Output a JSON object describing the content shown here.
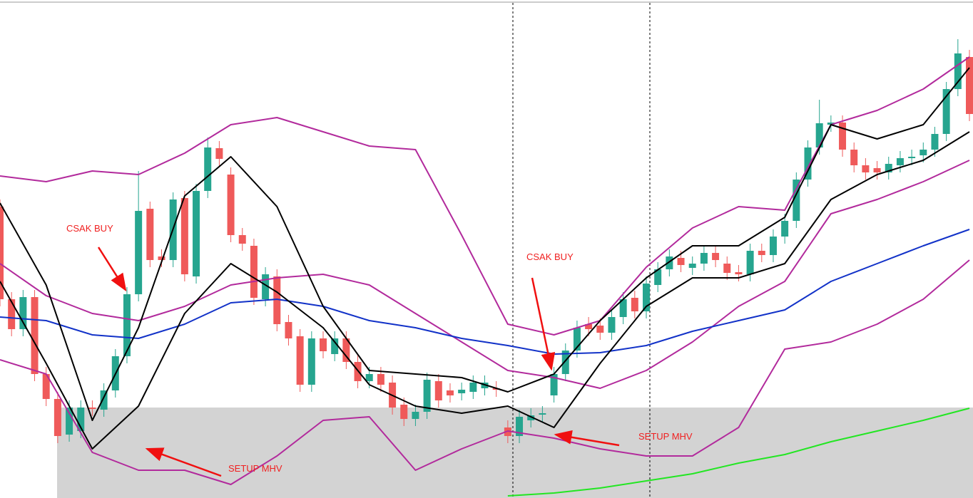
{
  "chart_data": {
    "type": "candlestick",
    "up_color": "#26a58f",
    "down_color": "#ef5a5a",
    "ylim": [
      0,
      69.9
    ],
    "open": [
      40.9,
      27.9,
      23.7,
      28.2,
      17.4,
      13.9,
      8.9,
      9.4,
      12.7,
      12.4,
      15.1,
      19.9,
      28.6,
      40.6,
      33.9,
      33.4,
      42.1,
      31.1,
      43.1,
      49.1,
      45.4,
      36.9,
      35.4,
      27.9,
      31.1,
      24.7,
      22.7,
      15.9,
      22.4,
      20.2,
      22.4,
      19.1,
      16.4,
      17.4,
      16.2,
      13.1,
      11.1,
      12.1,
      16.4,
      15.1,
      14.7,
      14.9,
      15.4,
      15.4,
      9.9,
      8.7,
      10.9,
      11.7,
      14.4,
      17.4,
      20.7,
      24.4,
      24.2,
      23.2,
      25.4,
      28.1,
      26.2,
      29.9,
      32.1,
      33.7,
      32.3,
      32.9,
      34.4,
      32.9,
      31.7,
      31.4,
      34.7,
      34.1,
      36.7,
      38.9,
      44.7,
      49.2,
      52.4,
      52.7,
      48.9,
      46.7,
      46.3,
      45.7,
      46.7,
      47.7,
      48.1,
      48.9,
      51.1,
      57.4,
      61.9
    ],
    "high": [
      41.9,
      28.9,
      29.2,
      29.2,
      18.4,
      14.9,
      13.7,
      13.7,
      13.7,
      16.1,
      20.9,
      29.6,
      45.9,
      41.6,
      34.9,
      42.9,
      43.1,
      44.1,
      50.6,
      50.1,
      46.4,
      37.9,
      36.4,
      32.4,
      32.1,
      25.7,
      23.7,
      23.4,
      23.4,
      23.4,
      23.4,
      20.1,
      18.4,
      18.4,
      17.2,
      14.1,
      13.1,
      17.6,
      17.4,
      16.1,
      16.2,
      17.2,
      17.2,
      16.4,
      10.9,
      12.4,
      12.6,
      12.9,
      18.4,
      21.7,
      24.9,
      25.4,
      25.2,
      26.4,
      28.9,
      29.1,
      31.1,
      33.1,
      34.9,
      34.7,
      33.9,
      35.4,
      35.4,
      33.9,
      32.7,
      35.7,
      35.7,
      37.7,
      39.9,
      45.7,
      50.2,
      55.9,
      53.7,
      53.7,
      49.9,
      47.7,
      47.3,
      47.9,
      48.7,
      48.9,
      49.9,
      52.1,
      58.4,
      64.4,
      62.9
    ],
    "low": [
      26.9,
      22.7,
      22.7,
      16.4,
      12.9,
      7.7,
      7.9,
      8.4,
      11.5,
      11.4,
      14.1,
      18.9,
      27.6,
      32.4,
      32.4,
      32.4,
      30.4,
      30.1,
      42.1,
      46.6,
      35.9,
      34.7,
      27.1,
      26.9,
      23.4,
      21.4,
      14.9,
      14.9,
      19.6,
      19.2,
      18.1,
      15.4,
      15.4,
      14.9,
      11.7,
      10.1,
      10.1,
      11.1,
      12.7,
      13.4,
      13.7,
      13.9,
      14.4,
      14.2,
      7.7,
      7.7,
      9.9,
      10.7,
      13.4,
      16.4,
      19.7,
      22.7,
      22.2,
      22.2,
      24.4,
      25.2,
      25.2,
      28.9,
      31.1,
      31.7,
      31.3,
      31.9,
      32.4,
      30.6,
      30.4,
      30.4,
      33.1,
      33.1,
      35.7,
      37.9,
      43.7,
      48.2,
      51.4,
      47.9,
      45.7,
      44.7,
      44.7,
      44.7,
      45.7,
      46.7,
      47.1,
      47.9,
      50.1,
      56.4,
      52.9
    ],
    "close": [
      27.9,
      23.7,
      28.2,
      17.4,
      13.9,
      8.7,
      12.7,
      12.7,
      12.5,
      15.1,
      19.9,
      28.6,
      40.3,
      33.4,
      33.4,
      41.9,
      31.4,
      43.1,
      49.2,
      47.6,
      36.9,
      35.7,
      28.1,
      31.4,
      24.4,
      22.4,
      15.9,
      22.4,
      20.6,
      22.4,
      19.1,
      16.4,
      17.4,
      15.9,
      12.7,
      11.1,
      12.1,
      16.6,
      13.7,
      14.4,
      15.2,
      16.2,
      16.2,
      15.2,
      8.7,
      11.4,
      11.6,
      11.9,
      17.4,
      20.7,
      23.9,
      23.7,
      23.2,
      25.4,
      27.9,
      26.2,
      30.1,
      32.1,
      33.9,
      32.7,
      32.9,
      34.4,
      33.4,
      31.6,
      31.4,
      34.7,
      34.1,
      36.7,
      38.9,
      44.7,
      49.2,
      52.6,
      52.7,
      48.9,
      46.7,
      45.7,
      45.7,
      46.9,
      47.7,
      47.9,
      48.9,
      51.1,
      57.4,
      62.4,
      53.9
    ],
    "overlays": [
      {
        "color": "#b22a9c",
        "x": [
          0,
          4,
          8,
          12,
          16,
          20,
          24,
          28,
          32,
          36,
          40,
          44,
          48,
          52,
          56,
          60,
          64,
          68,
          72,
          76,
          80,
          84
        ],
        "values": [
          45.2,
          44.4,
          45.9,
          45.4,
          48.4,
          52.4,
          53.4,
          51.4,
          49.4,
          48.9,
          36.9,
          24.4,
          22.9,
          24.9,
          32.4,
          37.9,
          40.9,
          40.4,
          52.4,
          54.4,
          57.4,
          61.9
        ]
      },
      {
        "color": "#b22a9c",
        "x": [
          0,
          4,
          8,
          12,
          16,
          20,
          24,
          28,
          32,
          36,
          40,
          44,
          48,
          52,
          56,
          60,
          64,
          68,
          72,
          76,
          80,
          84
        ],
        "values": [
          32.9,
          28.4,
          25.9,
          24.9,
          26.9,
          29.9,
          30.9,
          31.4,
          29.9,
          25.9,
          21.9,
          17.9,
          16.9,
          15.4,
          17.9,
          21.9,
          26.9,
          30.4,
          39.9,
          41.9,
          44.4,
          47.4
        ]
      },
      {
        "color": "#b22a9c",
        "x": [
          0,
          4,
          8,
          12,
          16,
          20,
          24,
          28,
          32,
          36,
          40,
          44,
          48,
          52,
          56,
          60,
          64,
          68,
          72,
          76,
          80,
          84
        ],
        "values": [
          19.4,
          17.4,
          6.4,
          3.9,
          3.9,
          1.9,
          5.9,
          10.9,
          11.4,
          3.9,
          6.9,
          9.4,
          8.4,
          6.9,
          5.9,
          5.9,
          9.9,
          20.9,
          21.9,
          24.4,
          27.9,
          33.4
        ]
      },
      {
        "color": "#1232c8",
        "x": [
          0,
          4,
          8,
          12,
          16,
          20,
          24,
          28,
          32,
          36,
          40,
          44,
          48,
          52,
          56,
          60,
          64,
          68,
          72,
          76,
          80,
          84
        ],
        "values": [
          25.4,
          24.9,
          22.9,
          22.4,
          24.4,
          27.4,
          27.9,
          26.9,
          24.9,
          23.9,
          22.4,
          21.4,
          20.2,
          20.4,
          21.4,
          23.4,
          24.9,
          26.4,
          30.4,
          32.9,
          35.4,
          37.7
        ]
      },
      {
        "color": "#000000",
        "x": [
          0,
          4,
          8,
          12,
          16,
          20,
          24,
          28,
          32,
          36,
          40,
          44,
          48,
          52,
          56,
          60,
          64,
          68,
          72,
          76,
          80,
          84
        ],
        "values": [
          41.4,
          29.9,
          10.9,
          23.9,
          42.4,
          47.9,
          40.9,
          26.9,
          17.9,
          17.4,
          16.9,
          14.9,
          17.4,
          24.9,
          30.9,
          35.4,
          35.4,
          39.4,
          52.4,
          50.4,
          52.4,
          60.4
        ]
      },
      {
        "color": "#000000",
        "x": [
          0,
          4,
          8,
          12,
          16,
          20,
          24,
          28,
          32,
          36,
          40,
          44,
          48,
          52,
          56,
          60,
          64,
          68,
          72,
          76,
          80,
          84
        ],
        "values": [
          30.4,
          18.9,
          6.9,
          12.9,
          25.9,
          32.9,
          28.9,
          23.9,
          15.9,
          12.9,
          11.9,
          12.9,
          9.9,
          18.9,
          26.9,
          30.9,
          30.9,
          32.9,
          41.9,
          45.4,
          47.4,
          51.4
        ]
      },
      {
        "color": "#22e622",
        "x": [
          44,
          48,
          52,
          56,
          60,
          64,
          68,
          72,
          76,
          80,
          84
        ],
        "values": [
          0.3,
          0.7,
          1.4,
          2.4,
          3.4,
          4.9,
          6.1,
          7.9,
          9.4,
          10.9,
          12.6
        ]
      }
    ],
    "annotations": [
      "CSAK BUY",
      "SETUP MHV",
      "CSAK BUY",
      "SETUP MHV"
    ]
  }
}
